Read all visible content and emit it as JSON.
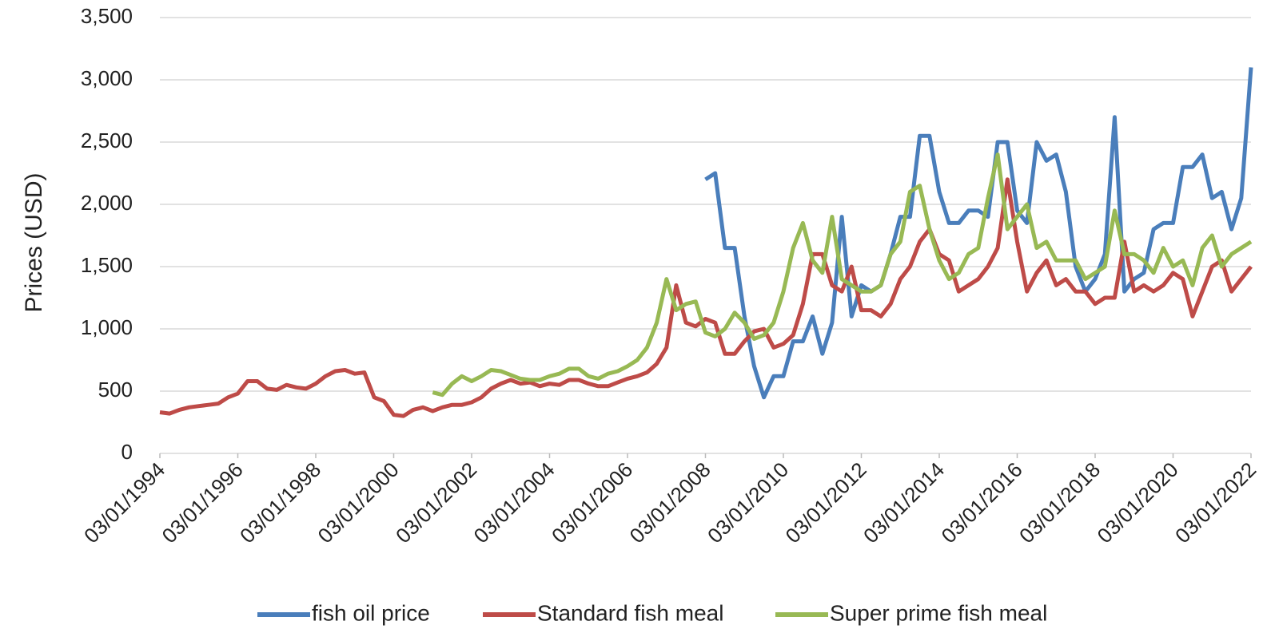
{
  "chart_data": {
    "type": "line",
    "y_label": "Prices (USD)",
    "x": [
      1994.17,
      1994.42,
      1994.67,
      1994.92,
      1995.17,
      1995.42,
      1995.67,
      1995.92,
      1996.17,
      1996.42,
      1996.67,
      1996.92,
      1997.17,
      1997.42,
      1997.67,
      1997.92,
      1998.17,
      1998.42,
      1998.67,
      1998.92,
      1999.17,
      1999.42,
      1999.67,
      1999.92,
      2000.17,
      2000.42,
      2000.67,
      2000.92,
      2001.17,
      2001.42,
      2001.67,
      2001.92,
      2002.17,
      2002.42,
      2002.67,
      2002.92,
      2003.17,
      2003.42,
      2003.67,
      2003.92,
      2004.17,
      2004.42,
      2004.67,
      2004.92,
      2005.17,
      2005.42,
      2005.67,
      2005.92,
      2006.17,
      2006.42,
      2006.67,
      2006.92,
      2007.17,
      2007.42,
      2007.67,
      2007.92,
      2008.17,
      2008.42,
      2008.67,
      2008.92,
      2009.17,
      2009.42,
      2009.67,
      2009.92,
      2010.17,
      2010.42,
      2010.67,
      2010.92,
      2011.17,
      2011.42,
      2011.67,
      2011.92,
      2012.17,
      2012.42,
      2012.67,
      2012.92,
      2013.17,
      2013.42,
      2013.67,
      2013.92,
      2014.17,
      2014.42,
      2014.67,
      2014.92,
      2015.17,
      2015.42,
      2015.67,
      2015.92,
      2016.17,
      2016.42,
      2016.67,
      2016.92,
      2017.17,
      2017.42,
      2017.67,
      2017.92,
      2018.17,
      2018.42,
      2018.67,
      2018.92,
      2019.17,
      2019.42,
      2019.67,
      2019.92,
      2020.17,
      2020.42,
      2020.67,
      2020.92,
      2021.17,
      2021.42,
      2021.67,
      2021.92,
      2022.17
    ],
    "series": [
      {
        "name": "fish oil price",
        "color": "#4a7ebb",
        "values": [
          null,
          null,
          null,
          null,
          null,
          null,
          null,
          null,
          null,
          null,
          null,
          null,
          null,
          null,
          null,
          null,
          null,
          null,
          null,
          null,
          null,
          null,
          null,
          null,
          null,
          null,
          null,
          null,
          null,
          null,
          null,
          null,
          null,
          null,
          null,
          null,
          null,
          null,
          null,
          null,
          null,
          null,
          null,
          null,
          null,
          null,
          null,
          null,
          null,
          null,
          null,
          null,
          null,
          null,
          null,
          null,
          2200,
          2250,
          1650,
          1650,
          1100,
          700,
          450,
          620,
          620,
          900,
          900,
          1100,
          800,
          1050,
          1900,
          1100,
          1350,
          1300,
          1350,
          1600,
          1900,
          1900,
          2550,
          2550,
          2100,
          1850,
          1850,
          1950,
          1950,
          1900,
          2500,
          2500,
          1950,
          1850,
          2500,
          2350,
          2400,
          2100,
          1500,
          1300,
          1400,
          1600,
          2700,
          1300,
          1400,
          1450,
          1800,
          1850,
          1850,
          2300,
          2300,
          2400,
          2050,
          2100,
          1800,
          2050,
          3100
        ]
      },
      {
        "name": "Standard fish meal",
        "color": "#be4b48",
        "values": [
          330,
          320,
          350,
          370,
          380,
          390,
          400,
          450,
          480,
          580,
          580,
          520,
          510,
          550,
          530,
          520,
          560,
          620,
          660,
          670,
          640,
          650,
          450,
          420,
          310,
          300,
          350,
          370,
          340,
          370,
          390,
          390,
          410,
          450,
          520,
          560,
          590,
          560,
          570,
          540,
          560,
          550,
          590,
          590,
          560,
          540,
          540,
          570,
          600,
          620,
          650,
          720,
          850,
          1350,
          1050,
          1020,
          1080,
          1050,
          800,
          800,
          900,
          980,
          1000,
          850,
          880,
          950,
          1200,
          1600,
          1600,
          1350,
          1300,
          1500,
          1150,
          1150,
          1100,
          1200,
          1400,
          1500,
          1700,
          1800,
          1600,
          1550,
          1300,
          1350,
          1400,
          1500,
          1650,
          2200,
          1700,
          1300,
          1450,
          1550,
          1350,
          1400,
          1300,
          1300,
          1200,
          1250,
          1250,
          1700,
          1300,
          1350,
          1300,
          1350,
          1450,
          1400,
          1100,
          1300,
          1500,
          1550,
          1300,
          1400,
          1500
        ]
      },
      {
        "name": "Super prime fish meal",
        "color": "#98b954",
        "values": [
          null,
          null,
          null,
          null,
          null,
          null,
          null,
          null,
          null,
          null,
          null,
          null,
          null,
          null,
          null,
          null,
          null,
          null,
          null,
          null,
          null,
          null,
          null,
          null,
          null,
          null,
          null,
          null,
          490,
          470,
          560,
          620,
          580,
          620,
          670,
          660,
          630,
          600,
          590,
          590,
          620,
          640,
          680,
          680,
          620,
          600,
          640,
          660,
          700,
          750,
          850,
          1050,
          1400,
          1150,
          1200,
          1220,
          970,
          940,
          1000,
          1130,
          1050,
          920,
          950,
          1050,
          1300,
          1650,
          1850,
          1550,
          1450,
          1900,
          1400,
          1350,
          1300,
          1300,
          1350,
          1600,
          1700,
          2100,
          2150,
          1800,
          1550,
          1400,
          1450,
          1600,
          1650,
          2050,
          2400,
          1800,
          1900,
          2000,
          1650,
          1700,
          1550,
          1550,
          1550,
          1400,
          1450,
          1500,
          1950,
          1600,
          1600,
          1550,
          1450,
          1650,
          1500,
          1550,
          1350,
          1650,
          1750,
          1500,
          1600,
          1650,
          1700
        ]
      }
    ],
    "xlim": [
      1994.17,
      2022.17
    ],
    "xticks": [
      {
        "value": 1994.17,
        "label": "03/01/1994"
      },
      {
        "value": 1996.17,
        "label": "03/01/1996"
      },
      {
        "value": 1998.17,
        "label": "03/01/1998"
      },
      {
        "value": 2000.17,
        "label": "03/01/2000"
      },
      {
        "value": 2002.17,
        "label": "03/01/2002"
      },
      {
        "value": 2004.17,
        "label": "03/01/2004"
      },
      {
        "value": 2006.17,
        "label": "03/01/2006"
      },
      {
        "value": 2008.17,
        "label": "03/01/2008"
      },
      {
        "value": 2010.17,
        "label": "03/01/2010"
      },
      {
        "value": 2012.17,
        "label": "03/01/2012"
      },
      {
        "value": 2014.17,
        "label": "03/01/2014"
      },
      {
        "value": 2016.17,
        "label": "03/01/2016"
      },
      {
        "value": 2018.17,
        "label": "03/01/2018"
      },
      {
        "value": 2020.17,
        "label": "03/01/2020"
      },
      {
        "value": 2022.17,
        "label": "03/01/2022"
      }
    ],
    "ylim": [
      0,
      3500
    ],
    "yticks": [
      0,
      {
        "value": 500,
        "label": "500"
      },
      {
        "value": 1000,
        "label": "1,000"
      },
      {
        "value": 1500,
        "label": "1,500"
      },
      {
        "value": 2000,
        "label": "2,000"
      },
      {
        "value": 2500,
        "label": "2,500"
      },
      {
        "value": 3000,
        "label": "3,000"
      },
      {
        "value": 3500,
        "label": "3,500"
      }
    ],
    "grid": true,
    "legend": "bottom"
  }
}
